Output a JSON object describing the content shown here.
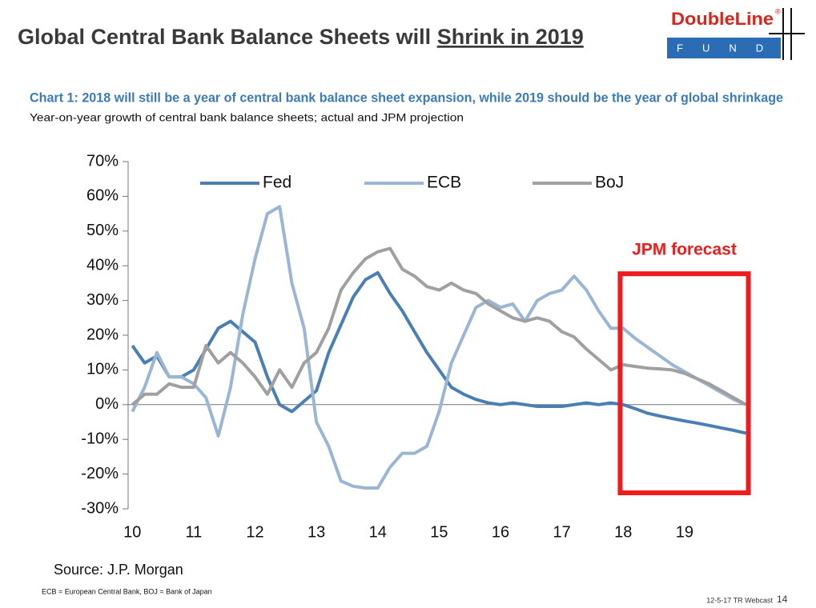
{
  "header": {
    "title": "Global Central Bank Balance Sheets will",
    "title_emphasis": "Shrink in 2019",
    "logo": {
      "name": "DoubleLine",
      "mark": "®",
      "sub": "FUNDS"
    }
  },
  "chart_data": {
    "type": "line",
    "title": "Chart 1: 2018 will still be a year of central bank balance sheet expansion, while 2019 should be the year of global shrinkage",
    "subtitle": "Year-on-year growth of central bank balance sheets; actual and JPM projection",
    "x": [
      10.0,
      10.2,
      10.4,
      10.6,
      10.8,
      11.0,
      11.2,
      11.4,
      11.6,
      11.8,
      12.0,
      12.2,
      12.4,
      12.6,
      12.8,
      13.0,
      13.2,
      13.4,
      13.6,
      13.8,
      14.0,
      14.2,
      14.4,
      14.6,
      14.8,
      15.0,
      15.2,
      15.4,
      15.6,
      15.8,
      16.0,
      16.2,
      16.4,
      16.6,
      16.8,
      17.0,
      17.2,
      17.4,
      17.6,
      17.8,
      18.0,
      18.2,
      18.4,
      18.6,
      18.8,
      19.0,
      19.2,
      19.4,
      19.6,
      19.8,
      20.0
    ],
    "series": [
      {
        "name": "Fed",
        "color": "#4a7fb5",
        "values": [
          17,
          12,
          14,
          8,
          8,
          10,
          16,
          22,
          24,
          21,
          18,
          8,
          0,
          -2,
          1,
          4,
          15,
          23,
          31,
          36,
          38,
          32,
          27,
          21,
          15,
          10,
          5,
          3,
          1.5,
          0.5,
          0,
          0.5,
          0,
          -0.5,
          -0.5,
          -0.5,
          0,
          0.5,
          0,
          0.5,
          0,
          -1.2,
          -2.5,
          -3.3,
          -4,
          -4.7,
          -5.3,
          -6,
          -6.7,
          -7.4,
          -8.2
        ]
      },
      {
        "name": "ECB",
        "color": "#9ab6d4",
        "values": [
          -2,
          5,
          15,
          8,
          8,
          6,
          2,
          -9,
          5,
          26,
          42,
          55,
          57,
          35,
          22,
          -5,
          -12,
          -22,
          -23.5,
          -24,
          -24,
          -18,
          -14,
          -14,
          -12,
          -2,
          12,
          20,
          28,
          30,
          28,
          29,
          24,
          30,
          32,
          33,
          37,
          33,
          27,
          22,
          22,
          19,
          16.5,
          14,
          11.5,
          9.5,
          7.5,
          5.5,
          3.5,
          1.5,
          0
        ]
      },
      {
        "name": "BoJ",
        "color": "#a0a0a0",
        "values": [
          0,
          3,
          3,
          6,
          5,
          5,
          17,
          12,
          15,
          12,
          8,
          3,
          10,
          5,
          12,
          15,
          22,
          33,
          38,
          42,
          44,
          45,
          39,
          37,
          34,
          33,
          35,
          33,
          32,
          29,
          27,
          25,
          24,
          25,
          24,
          21,
          19.5,
          16,
          13,
          10,
          11.5,
          11,
          10.5,
          10.3,
          10,
          9,
          7.5,
          6,
          4,
          2,
          0
        ]
      }
    ],
    "xlim": [
      9.97,
      20.02
    ],
    "xticks": [
      10,
      11,
      12,
      13,
      14,
      15,
      16,
      17,
      18,
      19
    ],
    "ylim": [
      -30,
      70
    ],
    "yticks": [
      {
        "value": 70,
        "label": "70%"
      },
      {
        "value": 60,
        "label": "60%"
      },
      {
        "value": 50,
        "label": "50%"
      },
      {
        "value": 40,
        "label": "40%"
      },
      {
        "value": 30,
        "label": "30%"
      },
      {
        "value": 20,
        "label": "20%"
      },
      {
        "value": 10,
        "label": "10%"
      },
      {
        "value": 0,
        "label": "0%"
      },
      {
        "value": -10,
        "label": "-10%"
      },
      {
        "value": -20,
        "label": "-20%"
      },
      {
        "value": -30,
        "label": "-30%"
      }
    ],
    "grid": false,
    "annotations": [
      {
        "text": "JPM forecast",
        "color": "#ee1c1c",
        "xrange": [
          17.95,
          20.04
        ],
        "yrange": [
          -25.4,
          37.7
        ]
      }
    ],
    "source": "Source: J.P. Morgan"
  },
  "footer": {
    "note": "ECB = European Central Bank, BOJ = Bank of Japan",
    "event": "12-5-17 TR Webcast",
    "page": "14"
  }
}
